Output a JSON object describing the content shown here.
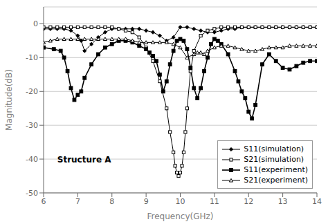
{
  "chart_data": {
    "type": "line",
    "title": "",
    "xlabel": "Frequency(GHz)",
    "ylabel": "Magnitude(dB)",
    "annotation": "Structure A",
    "xlim": [
      6,
      14
    ],
    "ylim": [
      -50,
      5
    ],
    "xticks": [
      6,
      7,
      8,
      9,
      10,
      11,
      12,
      13,
      14
    ],
    "yticks": [
      0,
      -10,
      -20,
      -30,
      -40,
      -50
    ],
    "grid": "y",
    "legend": "lower right",
    "series": [
      {
        "name": "S11(simulation)",
        "color": "#000000",
        "marker": "diamond",
        "line_style": "solid",
        "x": [
          6.0,
          6.2,
          6.4,
          6.6,
          6.8,
          7.0,
          7.1,
          7.2,
          7.4,
          7.6,
          7.8,
          8.0,
          8.2,
          8.4,
          8.6,
          8.8,
          9.0,
          9.2,
          9.4,
          9.6,
          9.8,
          10.0,
          10.2,
          10.4,
          10.6,
          10.8,
          11.0,
          11.2,
          11.4,
          11.6,
          11.8,
          12.0,
          12.2,
          12.4,
          12.6,
          12.8,
          13.0,
          13.2,
          13.4,
          13.6,
          13.8,
          14.0
        ],
        "values": [
          -1.5,
          -1.5,
          -1.5,
          -1.5,
          -2.0,
          -3.5,
          -5.0,
          -8.0,
          -6.0,
          -4.0,
          -2.5,
          -1.5,
          -1.5,
          -1.5,
          -1.5,
          -1.5,
          -2.0,
          -2.5,
          -3.5,
          -5.0,
          -4.0,
          -1.0,
          -1.0,
          -1.5,
          -2.0,
          -2.5,
          -2.5,
          -2.0,
          -1.5,
          -1.5,
          -1.0,
          -1.0,
          -1.0,
          -1.0,
          -1.0,
          -1.0,
          -1.0,
          -1.0,
          -1.0,
          -1.0,
          -1.0,
          -1.0
        ]
      },
      {
        "name": "S21(simulation)",
        "color": "#000000",
        "marker": "square_open",
        "line_style": "solid",
        "x": [
          6.0,
          6.2,
          6.4,
          6.6,
          6.8,
          7.0,
          7.2,
          7.4,
          7.6,
          7.8,
          8.0,
          8.2,
          8.4,
          8.6,
          8.8,
          9.0,
          9.2,
          9.4,
          9.6,
          9.7,
          9.8,
          9.85,
          9.9,
          9.95,
          10.0,
          10.05,
          10.1,
          10.15,
          10.2,
          10.3,
          10.4,
          10.6,
          10.8,
          11.0,
          11.2,
          11.4,
          11.6,
          11.8,
          12.0,
          12.2,
          12.4,
          12.6,
          12.8,
          13.0,
          13.2,
          13.4,
          13.6,
          13.8,
          14.0
        ],
        "values": [
          -1.0,
          -1.0,
          -1.0,
          -1.0,
          -1.0,
          -1.0,
          -1.0,
          -1.0,
          -1.0,
          -1.0,
          -1.0,
          -1.5,
          -2.0,
          -2.5,
          -4.0,
          -7.0,
          -11.0,
          -17.0,
          -25.0,
          -32.0,
          -38.0,
          -42.0,
          -44.0,
          -45.0,
          -44.0,
          -42.0,
          -38.0,
          -32.0,
          -25.0,
          -14.0,
          -8.0,
          -3.5,
          -2.0,
          -1.5,
          -1.0,
          -1.0,
          -1.0,
          -1.0,
          -1.0,
          -1.0,
          -1.0,
          -1.0,
          -1.0,
          -1.0,
          -1.0,
          -1.0,
          -1.0,
          -1.0,
          -1.0
        ]
      },
      {
        "name": "S11(experiment)",
        "color": "#000000",
        "marker": "square",
        "line_style": "solid",
        "x": [
          6.0,
          6.3,
          6.5,
          6.6,
          6.7,
          6.8,
          6.9,
          7.0,
          7.1,
          7.2,
          7.4,
          7.6,
          7.8,
          8.0,
          8.2,
          8.4,
          8.6,
          8.8,
          9.0,
          9.1,
          9.2,
          9.3,
          9.4,
          9.5,
          9.6,
          9.7,
          9.8,
          9.9,
          10.0,
          10.1,
          10.2,
          10.3,
          10.4,
          10.5,
          10.6,
          10.7,
          10.8,
          10.9,
          11.0,
          11.1,
          11.2,
          11.4,
          11.6,
          11.7,
          11.8,
          11.9,
          12.0,
          12.1,
          12.2,
          12.4,
          12.6,
          12.8,
          13.0,
          13.2,
          13.4,
          13.6,
          13.8,
          14.0
        ],
        "values": [
          -7.0,
          -7.5,
          -8.0,
          -10.0,
          -14.0,
          -19.0,
          -22.5,
          -21.0,
          -20.0,
          -16.0,
          -12.0,
          -9.0,
          -7.0,
          -6.0,
          -5.0,
          -5.0,
          -5.5,
          -6.5,
          -7.5,
          -8.5,
          -9.5,
          -11.0,
          -15.0,
          -20.0,
          -17.0,
          -12.0,
          -8.0,
          -5.0,
          -4.5,
          -5.0,
          -7.5,
          -13.0,
          -19.0,
          -22.0,
          -19.0,
          -14.0,
          -10.0,
          -6.0,
          -4.5,
          -5.0,
          -6.0,
          -9.0,
          -14.0,
          -17.0,
          -20.0,
          -22.0,
          -26.0,
          -28.0,
          -24.0,
          -12.0,
          -9.0,
          -11.0,
          -13.0,
          -13.5,
          -12.5,
          -11.5,
          -11.0,
          -11.0
        ]
      },
      {
        "name": "S21(experiment)",
        "color": "#000000",
        "marker": "triangle_open",
        "line_style": "solid",
        "x": [
          6.0,
          6.2,
          6.4,
          6.6,
          6.8,
          7.0,
          7.2,
          7.4,
          7.6,
          7.8,
          8.0,
          8.2,
          8.4,
          8.6,
          8.8,
          9.0,
          9.2,
          9.4,
          9.6,
          9.8,
          10.0,
          10.2,
          10.4,
          10.5,
          10.6,
          10.7,
          10.8,
          11.0,
          11.2,
          11.4,
          11.6,
          11.8,
          12.0,
          12.2,
          12.4,
          12.6,
          12.8,
          13.0,
          13.2,
          13.4,
          13.6,
          13.8,
          14.0
        ],
        "values": [
          -5.5,
          -5.0,
          -4.5,
          -4.5,
          -4.5,
          -4.5,
          -4.5,
          -4.5,
          -4.5,
          -4.5,
          -4.5,
          -4.5,
          -4.5,
          -5.0,
          -5.5,
          -5.5,
          -5.5,
          -5.5,
          -5.5,
          -6.0,
          -7.0,
          -10.0,
          -9.0,
          -8.5,
          -8.5,
          -9.0,
          -8.0,
          -7.0,
          -6.5,
          -6.5,
          -7.0,
          -7.5,
          -8.0,
          -8.0,
          -7.5,
          -7.0,
          -7.0,
          -7.0,
          -6.5,
          -6.5,
          -6.5,
          -6.5,
          -6.5
        ]
      }
    ]
  }
}
